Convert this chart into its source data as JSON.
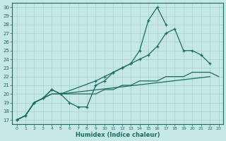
{
  "xlabel": "Humidex (Indice chaleur)",
  "xlim": [
    -0.5,
    23.5
  ],
  "ylim": [
    16.5,
    30.5
  ],
  "xticks": [
    0,
    1,
    2,
    3,
    4,
    5,
    6,
    7,
    8,
    9,
    10,
    11,
    12,
    13,
    14,
    15,
    16,
    17,
    18,
    19,
    20,
    21,
    22,
    23
  ],
  "yticks": [
    17,
    18,
    19,
    20,
    21,
    22,
    23,
    24,
    25,
    26,
    27,
    28,
    29,
    30
  ],
  "background_color": "#c5e8e4",
  "grid_color": "#a8d0cc",
  "line_color": "#1a6b60",
  "line1_x": [
    0,
    1,
    2,
    3,
    4,
    5,
    6,
    7,
    8,
    9,
    10,
    11,
    12,
    13,
    14,
    15,
    16,
    17
  ],
  "line1_y": [
    17.0,
    17.5,
    19.0,
    19.5,
    20.5,
    20.0,
    19.0,
    18.5,
    18.5,
    21.0,
    21.5,
    22.5,
    23.0,
    23.5,
    25.0,
    28.5,
    30.0,
    28.0
  ],
  "line2_x": [
    0,
    1,
    2,
    3,
    4,
    5,
    9,
    10,
    11,
    12,
    13,
    14,
    15,
    16,
    17,
    18,
    19,
    20,
    21,
    22
  ],
  "line2_y": [
    17.0,
    17.5,
    19.0,
    19.5,
    20.5,
    20.0,
    21.5,
    22.0,
    22.5,
    23.0,
    23.5,
    24.0,
    24.5,
    25.5,
    27.0,
    27.5,
    25.0,
    25.0,
    24.5,
    23.5
  ],
  "line3_x": [
    0,
    1,
    2,
    3,
    4,
    5,
    22
  ],
  "line3_y": [
    17.0,
    17.5,
    19.0,
    19.5,
    20.0,
    20.0,
    22.0
  ],
  "line4_x": [
    0,
    1,
    2,
    3,
    4,
    5,
    6,
    7,
    8,
    9,
    10,
    11,
    12,
    13,
    14,
    15,
    16,
    17,
    18,
    19,
    20,
    21,
    22,
    23
  ],
  "line4_y": [
    17.0,
    17.5,
    19.0,
    19.5,
    20.0,
    20.0,
    20.0,
    20.0,
    20.0,
    20.0,
    20.5,
    20.5,
    21.0,
    21.0,
    21.5,
    21.5,
    21.5,
    22.0,
    22.0,
    22.0,
    22.5,
    22.5,
    22.5,
    22.0
  ]
}
